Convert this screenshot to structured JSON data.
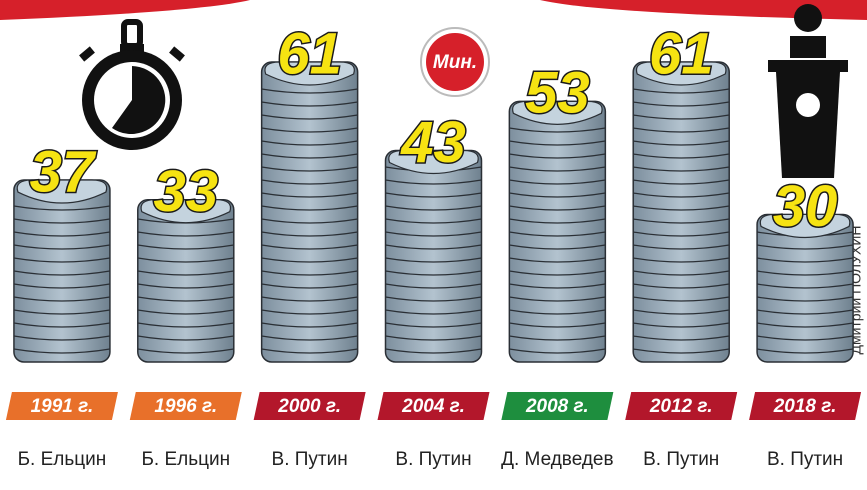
{
  "chart_data": {
    "type": "bar",
    "unit": "Мин.",
    "categories": [
      "1991 г.",
      "1996 г.",
      "2000 г.",
      "2004 г.",
      "2008 г.",
      "2012 г.",
      "2018 г."
    ],
    "names": [
      "Б. Ельцин",
      "Б. Ельцин",
      "В. Путин",
      "В. Путин",
      "Д. Медведев",
      "В. Путин",
      "В. Путин"
    ],
    "values": [
      37,
      33,
      61,
      43,
      53,
      61,
      30
    ],
    "label_colors": [
      "#e8702a",
      "#e8702a",
      "#b3172b",
      "#b3172b",
      "#1e8e3e",
      "#b3172b",
      "#b3172b"
    ],
    "color": "#9aadbb"
  },
  "credit": "Дмитрий ПОЛУХИН"
}
